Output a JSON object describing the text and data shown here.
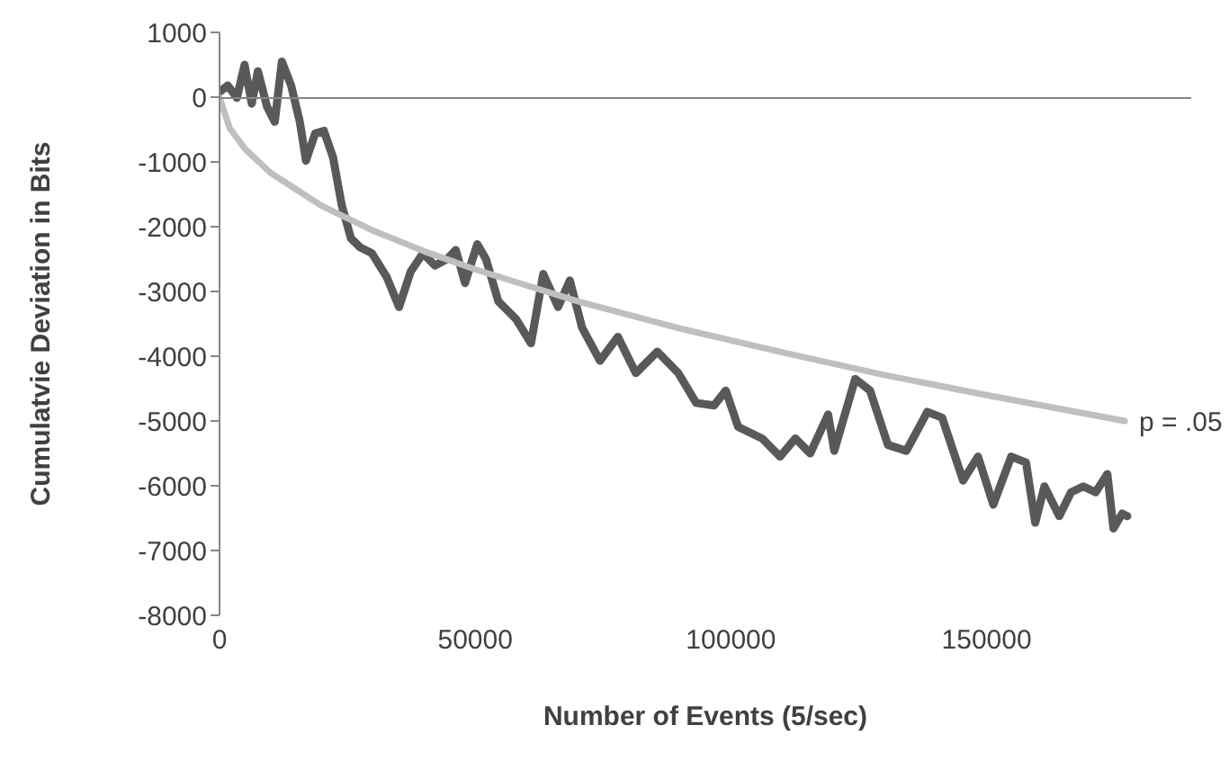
{
  "chart_data": {
    "type": "line",
    "xlabel": "Number of Events (5/sec)",
    "ylabel": "Cumulatvie Deviation in Bits",
    "xlim": [
      0,
      190000
    ],
    "xticks": [
      0,
      50000,
      100000,
      150000
    ],
    "ylim": [
      -8000,
      1000
    ],
    "yticks": [
      -8000,
      -7000,
      -6000,
      -5000,
      -4000,
      -3000,
      -2000,
      -1000,
      0,
      1000
    ],
    "marker": "none",
    "line_style": "solid",
    "series": [
      {
        "color": "#595959",
        "x": [
          0,
          1600,
          3400,
          4900,
          6300,
          7500,
          9300,
          10800,
          12200,
          14000,
          15700,
          16900,
          18700,
          20400,
          22200,
          23900,
          25700,
          27500,
          29800,
          32700,
          35100,
          37400,
          39800,
          42100,
          44500,
          46200,
          48000,
          50400,
          52100,
          54500,
          58000,
          60900,
          63300,
          66200,
          68500,
          70900,
          74400,
          77900,
          81400,
          85600,
          89700,
          93200,
          96700,
          99000,
          101400,
          106100,
          109600,
          112600,
          115500,
          119000,
          120200,
          124300,
          127200,
          130700,
          134300,
          138400,
          141300,
          145400,
          148300,
          151300,
          154800,
          157700,
          159500,
          161300,
          164200,
          166500,
          168900,
          171300,
          173600,
          174800,
          176500,
          177500
        ],
        "values": [
          80,
          180,
          -10,
          500,
          -100,
          400,
          -150,
          -380,
          550,
          180,
          -380,
          -980,
          -560,
          -520,
          -930,
          -1670,
          -2180,
          -2320,
          -2410,
          -2780,
          -3240,
          -2690,
          -2410,
          -2600,
          -2500,
          -2360,
          -2870,
          -2270,
          -2500,
          -3150,
          -3430,
          -3800,
          -2730,
          -3240,
          -2830,
          -3560,
          -4070,
          -3700,
          -4260,
          -3930,
          -4260,
          -4720,
          -4760,
          -4530,
          -5090,
          -5270,
          -5550,
          -5270,
          -5500,
          -4900,
          -5460,
          -4350,
          -4530,
          -5370,
          -5460,
          -4860,
          -4950,
          -5920,
          -5550,
          -6290,
          -5550,
          -5640,
          -6570,
          -6010,
          -6470,
          -6100,
          -6010,
          -6100,
          -5820,
          -6660,
          -6430,
          -6470
        ]
      },
      {
        "color": "#bfbfbf",
        "x": [
          0,
          2000,
          5000,
          10000,
          20000,
          30000,
          40000,
          50000,
          70000,
          90000,
          110000,
          130000,
          150000,
          177000
        ],
        "values": [
          0,
          -480,
          -800,
          -1170,
          -1680,
          -2060,
          -2380,
          -2660,
          -3150,
          -3570,
          -3940,
          -4290,
          -4600,
          -5000
        ]
      }
    ],
    "annotations": [
      {
        "text": "p = .05",
        "x": 177000,
        "y": -5000
      }
    ]
  }
}
